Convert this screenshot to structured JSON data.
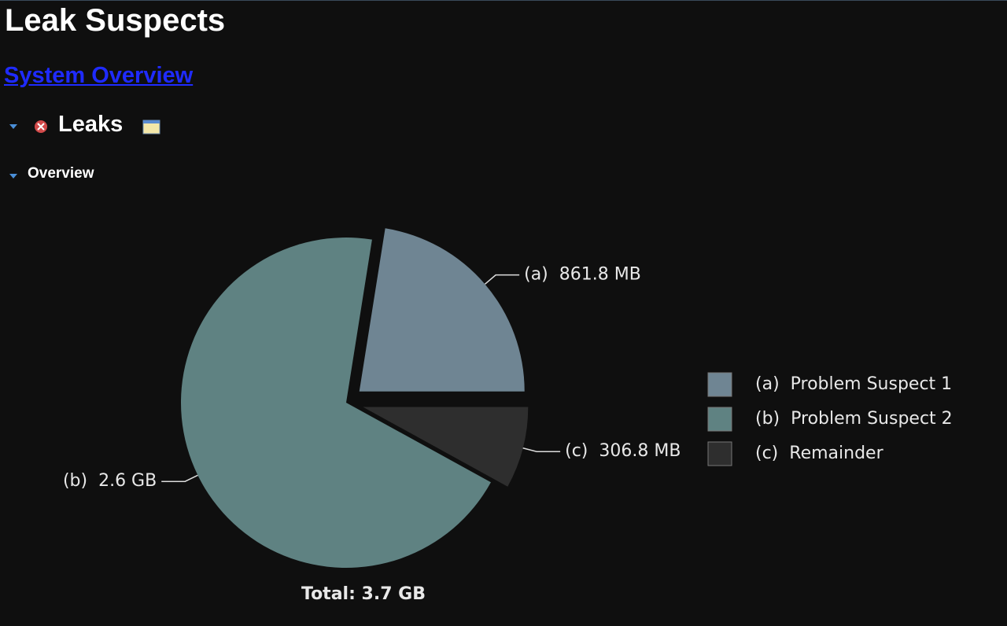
{
  "header": {
    "title": "Leak Suspects",
    "link": "System Overview",
    "section": "Leaks",
    "subsection": "Overview"
  },
  "chart_data": {
    "type": "pie",
    "categories": [
      "Problem Suspect 1",
      "Problem Suspect 2",
      "Remainder"
    ],
    "slice_ids": [
      "(a)",
      "(b)",
      "(c)"
    ],
    "values": [
      861.8,
      2662.4,
      306.8
    ],
    "value_labels": [
      "861.8 MB",
      "2.6 GB",
      "306.8 MB"
    ],
    "colors": [
      "#6f8593",
      "#5f8282",
      "#2e2e2e"
    ],
    "exploded": [
      true,
      false,
      true
    ],
    "total_label": "Total: 3.7 GB",
    "legend": "right"
  }
}
